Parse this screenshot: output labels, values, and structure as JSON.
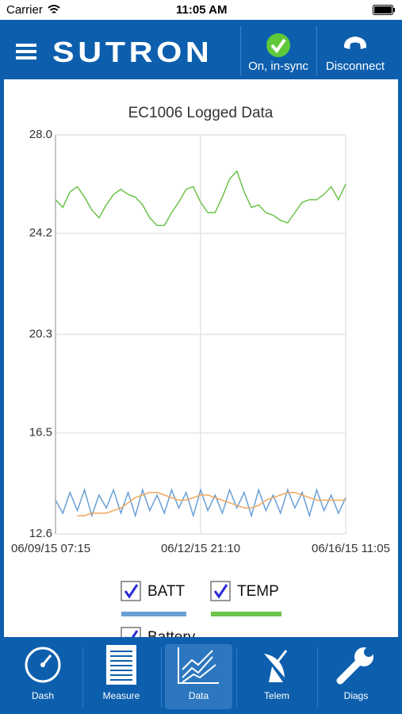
{
  "status_bar": {
    "carrier": "Carrier",
    "time": "11:05 AM"
  },
  "header": {
    "brand": "SUTRON",
    "sync_status": "On, in-sync",
    "disconnect": "Disconnect"
  },
  "chart_data": {
    "type": "line",
    "title": "EC1006 Logged Data",
    "categories": [
      "06/09/15 07:15",
      null,
      null,
      null,
      null,
      null,
      null,
      null,
      null,
      null,
      null,
      null,
      null,
      null,
      null,
      null,
      null,
      null,
      null,
      null,
      "06/12/15 21:10",
      null,
      null,
      null,
      null,
      null,
      null,
      null,
      null,
      null,
      null,
      null,
      null,
      null,
      null,
      null,
      null,
      null,
      null,
      null,
      "06/16/15 11:05"
    ],
    "series": [
      {
        "name": "BATT",
        "color": "#6a9fd6",
        "values": [
          13.9,
          13.4,
          14.2,
          13.5,
          14.3,
          13.3,
          14.1,
          13.6,
          14.3,
          13.4,
          14.2,
          13.3,
          14.3,
          13.5,
          14.1,
          13.4,
          14.3,
          13.6,
          14.2,
          13.3,
          14.3,
          13.5,
          14.1,
          13.4,
          14.3,
          13.6,
          14.2,
          13.3,
          14.3,
          13.5,
          14.1,
          13.4,
          14.3,
          13.6,
          14.2,
          13.3,
          14.3,
          13.5,
          14.1,
          13.4,
          14.0
        ]
      },
      {
        "name": "TEMP",
        "color": "#6cc24a",
        "values": [
          25.5,
          25.2,
          25.8,
          26.0,
          25.6,
          25.1,
          24.8,
          25.3,
          25.7,
          25.9,
          25.7,
          25.6,
          25.3,
          24.8,
          24.5,
          24.5,
          25.0,
          25.4,
          25.9,
          26.0,
          25.4,
          25.0,
          25.0,
          25.6,
          26.3,
          26.6,
          25.8,
          25.2,
          25.3,
          25.0,
          24.9,
          24.7,
          24.6,
          25.0,
          25.4,
          25.5,
          25.5,
          25.7,
          26.0,
          25.5,
          26.1
        ]
      },
      {
        "name": "Battery",
        "color": "#f0a85a",
        "values": [
          null,
          null,
          null,
          13.3,
          13.3,
          13.4,
          13.4,
          13.4,
          13.5,
          13.6,
          13.8,
          14.0,
          14.1,
          14.2,
          14.2,
          14.1,
          14.0,
          13.9,
          13.9,
          14.0,
          14.1,
          14.1,
          14.0,
          13.9,
          13.8,
          13.7,
          13.6,
          13.6,
          13.7,
          13.9,
          14.0,
          14.1,
          14.2,
          14.2,
          14.1,
          14.0,
          13.9,
          13.9,
          13.9,
          13.9,
          13.9
        ]
      }
    ],
    "ylim": [
      12.6,
      28.0
    ],
    "yticks": [
      12.6,
      16.5,
      20.3,
      24.2,
      {
        "value": 28.0,
        "label": "28.0"
      }
    ],
    "grid": true
  },
  "tabs": [
    "Dash",
    "Measure",
    "Data",
    "Telem",
    "Diags"
  ]
}
